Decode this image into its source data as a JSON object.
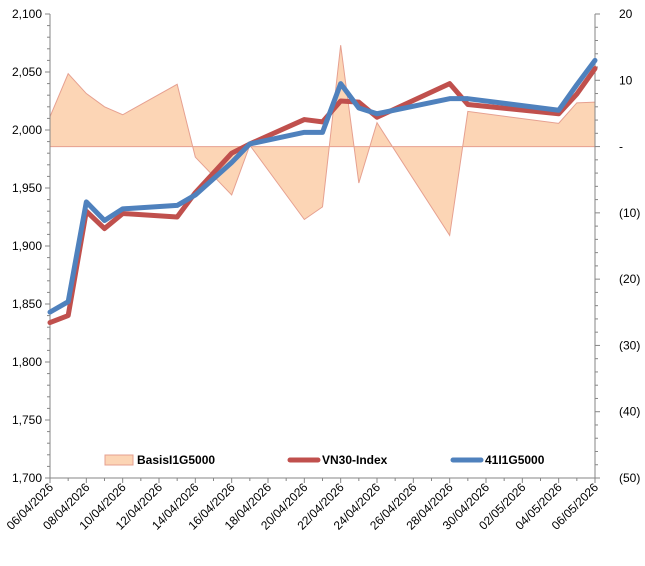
{
  "chart_data": {
    "type": "line",
    "title": "",
    "xlabel": "",
    "ylabel": "",
    "x_tick_labels": [
      "06/04/2026",
      "08/04/2026",
      "10/04/2026",
      "12/04/2026",
      "14/04/2026",
      "16/04/2026",
      "18/04/2026",
      "20/04/2026",
      "22/04/2026",
      "24/04/2026",
      "26/04/2026",
      "28/04/2026",
      "30/04/2026",
      "02/05/2026",
      "04/05/2026",
      "06/05/2026"
    ],
    "x_start": "2026-04-06",
    "x_end": "2026-05-06",
    "y_left": {
      "range": [
        1700,
        2100
      ],
      "ticks": [
        1700,
        1750,
        1800,
        1850,
        1900,
        1950,
        2000,
        2050,
        2100
      ],
      "tick_labels": [
        "1,700",
        "1,750",
        "1,800",
        "1,850",
        "1,900",
        "1,950",
        "2,000",
        "2,050",
        "2,100"
      ]
    },
    "y_right": {
      "range": [
        -50,
        20
      ],
      "ticks": [
        20,
        10,
        0,
        -10,
        -20,
        -30,
        -40,
        -50
      ],
      "tick_labels": [
        "20",
        "10",
        "-",
        "(10)",
        "(20)",
        "(30)",
        "(40)",
        "(50)"
      ]
    },
    "legend_position": "bottom",
    "grid": false,
    "series": [
      {
        "name": "BasisI1G5000",
        "kind": "area",
        "axis": "right",
        "color_fill": "#fcd5b5",
        "color_line": "#e6a090",
        "points": [
          [
            "2026-04-06",
            4.5
          ],
          [
            "2026-04-07",
            11
          ],
          [
            "2026-04-08",
            8
          ],
          [
            "2026-04-09",
            6
          ],
          [
            "2026-04-10",
            4.8
          ],
          [
            "2026-04-13",
            9.4
          ],
          [
            "2026-04-14",
            -1.6
          ],
          [
            "2026-04-16",
            -7.3
          ],
          [
            "2026-04-17",
            0.2
          ],
          [
            "2026-04-20",
            -11
          ],
          [
            "2026-04-21",
            -9.1
          ],
          [
            "2026-04-22",
            15.3
          ],
          [
            "2026-04-23",
            -5.5
          ],
          [
            "2026-04-24",
            3.6
          ],
          [
            "2026-04-28",
            -13.4
          ],
          [
            "2026-04-29",
            5.3
          ],
          [
            "2026-05-04",
            3.5
          ],
          [
            "2026-05-05",
            6.6
          ],
          [
            "2026-05-06",
            6.7
          ]
        ]
      },
      {
        "name": "VN30-Index",
        "kind": "line",
        "axis": "left",
        "color": "#c0504d",
        "points": [
          [
            "2026-04-06",
            1834
          ],
          [
            "2026-04-07",
            1840
          ],
          [
            "2026-04-08",
            1930
          ],
          [
            "2026-04-09",
            1915
          ],
          [
            "2026-04-10",
            1928
          ],
          [
            "2026-04-13",
            1925
          ],
          [
            "2026-04-14",
            1946
          ],
          [
            "2026-04-16",
            1980
          ],
          [
            "2026-04-17",
            1988
          ],
          [
            "2026-04-20",
            2009
          ],
          [
            "2026-04-21",
            2007
          ],
          [
            "2026-04-22",
            2025
          ],
          [
            "2026-04-23",
            2024
          ],
          [
            "2026-04-24",
            2011
          ],
          [
            "2026-04-28",
            2040
          ],
          [
            "2026-04-29",
            2022
          ],
          [
            "2026-05-04",
            2014
          ],
          [
            "2026-05-05",
            2031
          ],
          [
            "2026-05-06",
            2053
          ]
        ]
      },
      {
        "name": "41I1G5000",
        "kind": "line",
        "axis": "left",
        "color": "#4f81bd",
        "points": [
          [
            "2026-04-06",
            1843
          ],
          [
            "2026-04-07",
            1852
          ],
          [
            "2026-04-08",
            1938
          ],
          [
            "2026-04-09",
            1922
          ],
          [
            "2026-04-10",
            1932
          ],
          [
            "2026-04-13",
            1935
          ],
          [
            "2026-04-14",
            1944
          ],
          [
            "2026-04-16",
            1972
          ],
          [
            "2026-04-17",
            1988
          ],
          [
            "2026-04-20",
            1998
          ],
          [
            "2026-04-21",
            1998
          ],
          [
            "2026-04-22",
            2040
          ],
          [
            "2026-04-23",
            2019
          ],
          [
            "2026-04-24",
            2014
          ],
          [
            "2026-04-28",
            2027
          ],
          [
            "2026-04-29",
            2027
          ],
          [
            "2026-05-04",
            2017
          ],
          [
            "2026-05-05",
            2039
          ],
          [
            "2026-05-06",
            2060
          ]
        ]
      }
    ]
  }
}
